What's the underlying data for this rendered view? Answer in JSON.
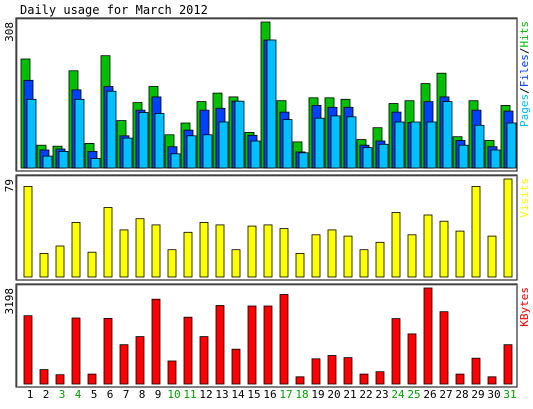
{
  "chart_data": {
    "type": "bar",
    "title": "Daily usage for March 2012",
    "colors": {
      "hits": "#00c000",
      "files": "#0040ff",
      "pages": "#00c0ff",
      "visits": "#ffff00",
      "kbytes": "#ff0000",
      "weekend_label": "#00a000",
      "weekday_label": "#000000",
      "background": "#ffffff",
      "panel_border": "#000000"
    },
    "days": [
      "1",
      "2",
      "3",
      "4",
      "5",
      "6",
      "7",
      "8",
      "9",
      "10",
      "11",
      "12",
      "13",
      "14",
      "15",
      "16",
      "17",
      "18",
      "19",
      "20",
      "21",
      "22",
      "23",
      "24",
      "25",
      "26",
      "27",
      "28",
      "29",
      "30",
      "31"
    ],
    "weekend_days": [
      "3",
      "4",
      "10",
      "11",
      "17",
      "18",
      "24",
      "25",
      "31"
    ],
    "panels": [
      {
        "name": "pages-files-hits",
        "ylabel_parts": [
          {
            "text": "Pages",
            "color": "#00c0ff"
          },
          {
            "text": "/",
            "color": "#000000"
          },
          {
            "text": "Files",
            "color": "#0040ff"
          },
          {
            "text": "/",
            "color": "#000000"
          },
          {
            "text": "Hits",
            "color": "#00c000"
          }
        ],
        "ymax_label": "308",
        "ymax": 308,
        "series": [
          {
            "name": "Hits",
            "color": "#00c000",
            "values": [
              230,
              48,
              46,
              205,
              52,
              237,
              100,
              138,
              172,
              70,
              95,
              140,
              158,
              150,
              75,
              308,
              142,
              55,
              148,
              148,
              145,
              60,
              85,
              136,
              142,
              178,
              200,
              66,
              142,
              58,
              132
            ]
          },
          {
            "name": "Files",
            "color": "#0040ff",
            "values": [
              185,
              38,
              40,
              165,
              35,
              172,
              68,
              122,
              150,
              45,
              80,
              122,
              126,
              141,
              69,
              270,
              118,
              34,
              132,
              128,
              128,
              48,
              57,
              118,
              96,
              140,
              150,
              58,
              122,
              45,
              120
            ]
          },
          {
            "name": "Pages",
            "color": "#00c0ff",
            "values": [
              145,
              25,
              35,
              145,
              20,
              162,
              63,
              117,
              115,
              30,
              68,
              70,
              97,
              141,
              57,
              270,
              102,
              32,
              105,
              110,
              108,
              43,
              50,
              97,
              97,
              97,
              140,
              48,
              90,
              38,
              95
            ]
          }
        ]
      },
      {
        "name": "visits",
        "ylabel_parts": [
          {
            "text": "Visits",
            "color": "#ffff00"
          }
        ],
        "ymax_label": "79",
        "ymax": 79,
        "series": [
          {
            "name": "Visits",
            "color": "#ffff00",
            "values": [
              73,
              19,
              25,
              44,
              20,
              56,
              38,
              47,
              42,
              22,
              36,
              44,
              42,
              22,
              41,
              42,
              39,
              19,
              34,
              38,
              33,
              22,
              28,
              52,
              34,
              50,
              45,
              37,
              73,
              33,
              79
            ]
          }
        ]
      },
      {
        "name": "kbytes",
        "ylabel_parts": [
          {
            "text": "KBytes",
            "color": "#ff0000"
          }
        ],
        "ymax_label": "3198",
        "ymax": 3198,
        "series": [
          {
            "name": "KBytes",
            "color": "#ff0000",
            "values": [
              2275,
              480,
              310,
              2200,
              330,
              2185,
              1310,
              1580,
              2825,
              765,
              2225,
              1580,
              2615,
              1160,
              2600,
              2600,
              2980,
              240,
              840,
              950,
              880,
              330,
              410,
              2180,
              1670,
              3198,
              2410,
              330,
              860,
              240,
              1310
            ]
          }
        ]
      }
    ]
  }
}
